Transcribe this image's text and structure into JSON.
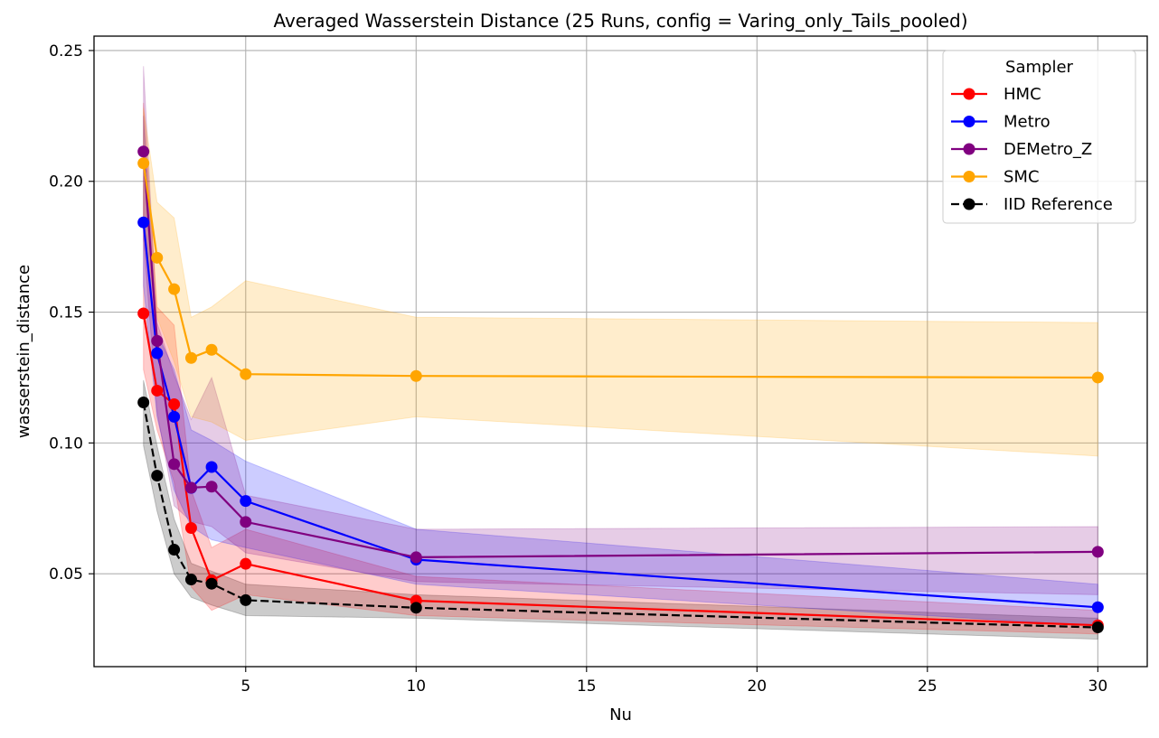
{
  "chart_data": {
    "type": "line",
    "title": "Averaged Wasserstein Distance (25 Runs, config = Varing_only_Tails_pooled)",
    "xlabel": "Nu",
    "ylabel": "wasserstein_distance",
    "xlim": [
      0.55,
      31.45
    ],
    "ylim": [
      0.0145,
      0.2555
    ],
    "xticks": [
      5,
      10,
      15,
      20,
      25,
      30
    ],
    "yticks": [
      0.05,
      0.1,
      0.15,
      0.2,
      0.25
    ],
    "xtick_labels": [
      "5",
      "10",
      "15",
      "20",
      "25",
      "30"
    ],
    "ytick_labels": [
      "0.05",
      "0.10",
      "0.15",
      "0.20",
      "0.25"
    ],
    "grid": true,
    "legend": {
      "title": "Sampler",
      "placement": "top-right"
    },
    "x": [
      2,
      2.4,
      2.9,
      3.4,
      4,
      5,
      10,
      30
    ],
    "series": [
      {
        "name": "HMC",
        "color": "#ff0000",
        "dashed": false,
        "values": [
          0.1495,
          0.12,
          0.1148,
          0.0675,
          0.0475,
          0.0538,
          0.0397,
          0.0303
        ],
        "lower": [
          0.128,
          0.105,
          0.085,
          0.045,
          0.036,
          0.042,
          0.034,
          0.027
        ],
        "upper": [
          0.23,
          0.152,
          0.145,
          0.082,
          0.06,
          0.067,
          0.049,
          0.036
        ]
      },
      {
        "name": "Metro",
        "color": "#0000ff",
        "dashed": false,
        "values": [
          0.1843,
          0.1343,
          0.11,
          0.0828,
          0.0908,
          0.0778,
          0.0554,
          0.0372
        ],
        "lower": [
          0.16,
          0.11,
          0.082,
          0.068,
          0.063,
          0.06,
          0.046,
          0.03
        ],
        "upper": [
          0.225,
          0.142,
          0.128,
          0.105,
          0.101,
          0.093,
          0.067,
          0.046
        ]
      },
      {
        "name": "DEMetro_Z",
        "color": "#800080",
        "dashed": false,
        "values": [
          0.2114,
          0.139,
          0.0919,
          0.0829,
          0.0833,
          0.0698,
          0.0563,
          0.0584
        ],
        "lower": [
          0.178,
          0.112,
          0.076,
          0.07,
          0.068,
          0.058,
          0.047,
          0.042
        ],
        "upper": [
          0.244,
          0.146,
          0.126,
          0.109,
          0.125,
          0.08,
          0.067,
          0.068
        ]
      },
      {
        "name": "SMC",
        "color": "#ffa500",
        "dashed": false,
        "values": [
          0.2069,
          0.1708,
          0.1588,
          0.1325,
          0.1356,
          0.1263,
          0.1256,
          0.125
        ],
        "lower": [
          0.183,
          0.148,
          0.131,
          0.11,
          0.108,
          0.101,
          0.11,
          0.095
        ],
        "upper": [
          0.228,
          0.192,
          0.186,
          0.148,
          0.152,
          0.162,
          0.148,
          0.146
        ]
      },
      {
        "name": "IID Reference",
        "color": "#000000",
        "dashed": true,
        "values": [
          0.1155,
          0.0875,
          0.0592,
          0.0478,
          0.0462,
          0.0399,
          0.037,
          0.0295
        ],
        "lower": [
          0.099,
          0.074,
          0.05,
          0.041,
          0.038,
          0.034,
          0.033,
          0.025
        ],
        "upper": [
          0.124,
          0.099,
          0.071,
          0.054,
          0.051,
          0.046,
          0.042,
          0.033
        ]
      }
    ]
  }
}
